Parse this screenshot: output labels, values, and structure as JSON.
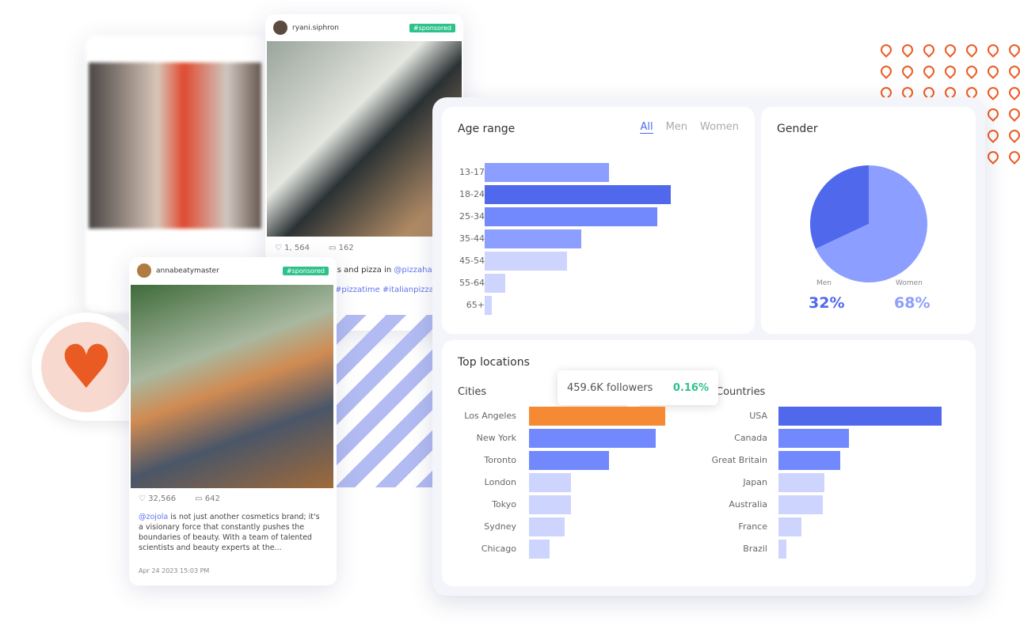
{
  "colors": {
    "accent": "#5068ec",
    "orange": "#f68a34",
    "heart": "#ea5b24",
    "sponsored": "#2ec28b"
  },
  "posts": [
    {
      "username": "ryani.siphron",
      "badge": "#sponsored",
      "likes": "1, 564",
      "comments": "162",
      "caption_pre": "ks and pizza in ",
      "caption_mention": "@pizzahall",
      "hashtags": "#pizzatime #italianpizza #"
    },
    {
      "username": "annabeatymaster",
      "badge": "#sponsored",
      "likes": "32,566",
      "comments": "642",
      "caption_mention": "@zojola",
      "caption": " is not just another cosmetics brand; it's a visionary force that constantly pushes the boundaries of beauty. With a team of talented scientists and beauty experts at the...",
      "timestamp": "Apr 24 2023 15:03 PM"
    }
  ],
  "age": {
    "title": "Age range",
    "tabs": [
      "All",
      "Men",
      "Women"
    ],
    "active_tab": "All"
  },
  "gender": {
    "title": "Gender",
    "men_label": "Men",
    "women_label": "Women",
    "men_value": "32%",
    "women_value": "68%"
  },
  "locations": {
    "title": "Top locations",
    "cities_label": "Cities",
    "countries_label": "Countries",
    "tooltip": {
      "followers": "459.6K followers",
      "percent": "0.16%"
    }
  },
  "chart_data": [
    {
      "type": "bar",
      "orientation": "horizontal",
      "title": "Age range",
      "categories": [
        "13-17",
        "18-24",
        "25-34",
        "35-44",
        "45-54",
        "55-64",
        "65+"
      ],
      "values": [
        18,
        27,
        25,
        14,
        12,
        3,
        1
      ],
      "colors": [
        "#8c9eff",
        "#5068ec",
        "#7289fd",
        "#8c9eff",
        "#cdd5fe",
        "#cdd5fe",
        "#cdd5fe"
      ]
    },
    {
      "type": "pie",
      "title": "Gender",
      "categories": [
        "Men",
        "Women"
      ],
      "values": [
        32,
        68
      ],
      "colors": [
        "#5068ec",
        "#8c9eff"
      ]
    },
    {
      "type": "bar",
      "orientation": "horizontal",
      "title": "Cities",
      "categories": [
        "Los Angeles",
        "New York",
        "Toronto",
        "London",
        "Tokyo",
        "Sydney",
        "Chicago"
      ],
      "values": [
        100,
        93,
        59,
        31,
        31,
        26,
        15
      ],
      "colors": [
        "#f68a34",
        "#7289fd",
        "#7289fd",
        "#cdd5fe",
        "#cdd5fe",
        "#cdd5fe",
        "#cdd5fe"
      ]
    },
    {
      "type": "bar",
      "orientation": "horizontal",
      "title": "Countries",
      "categories": [
        "USA",
        "Canada",
        "Great Britain",
        "Japan",
        "Australia",
        "France",
        "Brazil"
      ],
      "values": [
        100,
        43,
        38,
        28,
        27,
        14,
        5
      ],
      "colors": [
        "#5068ec",
        "#7289fd",
        "#7289fd",
        "#cdd5fe",
        "#cdd5fe",
        "#cdd5fe",
        "#cdd5fe"
      ]
    }
  ]
}
